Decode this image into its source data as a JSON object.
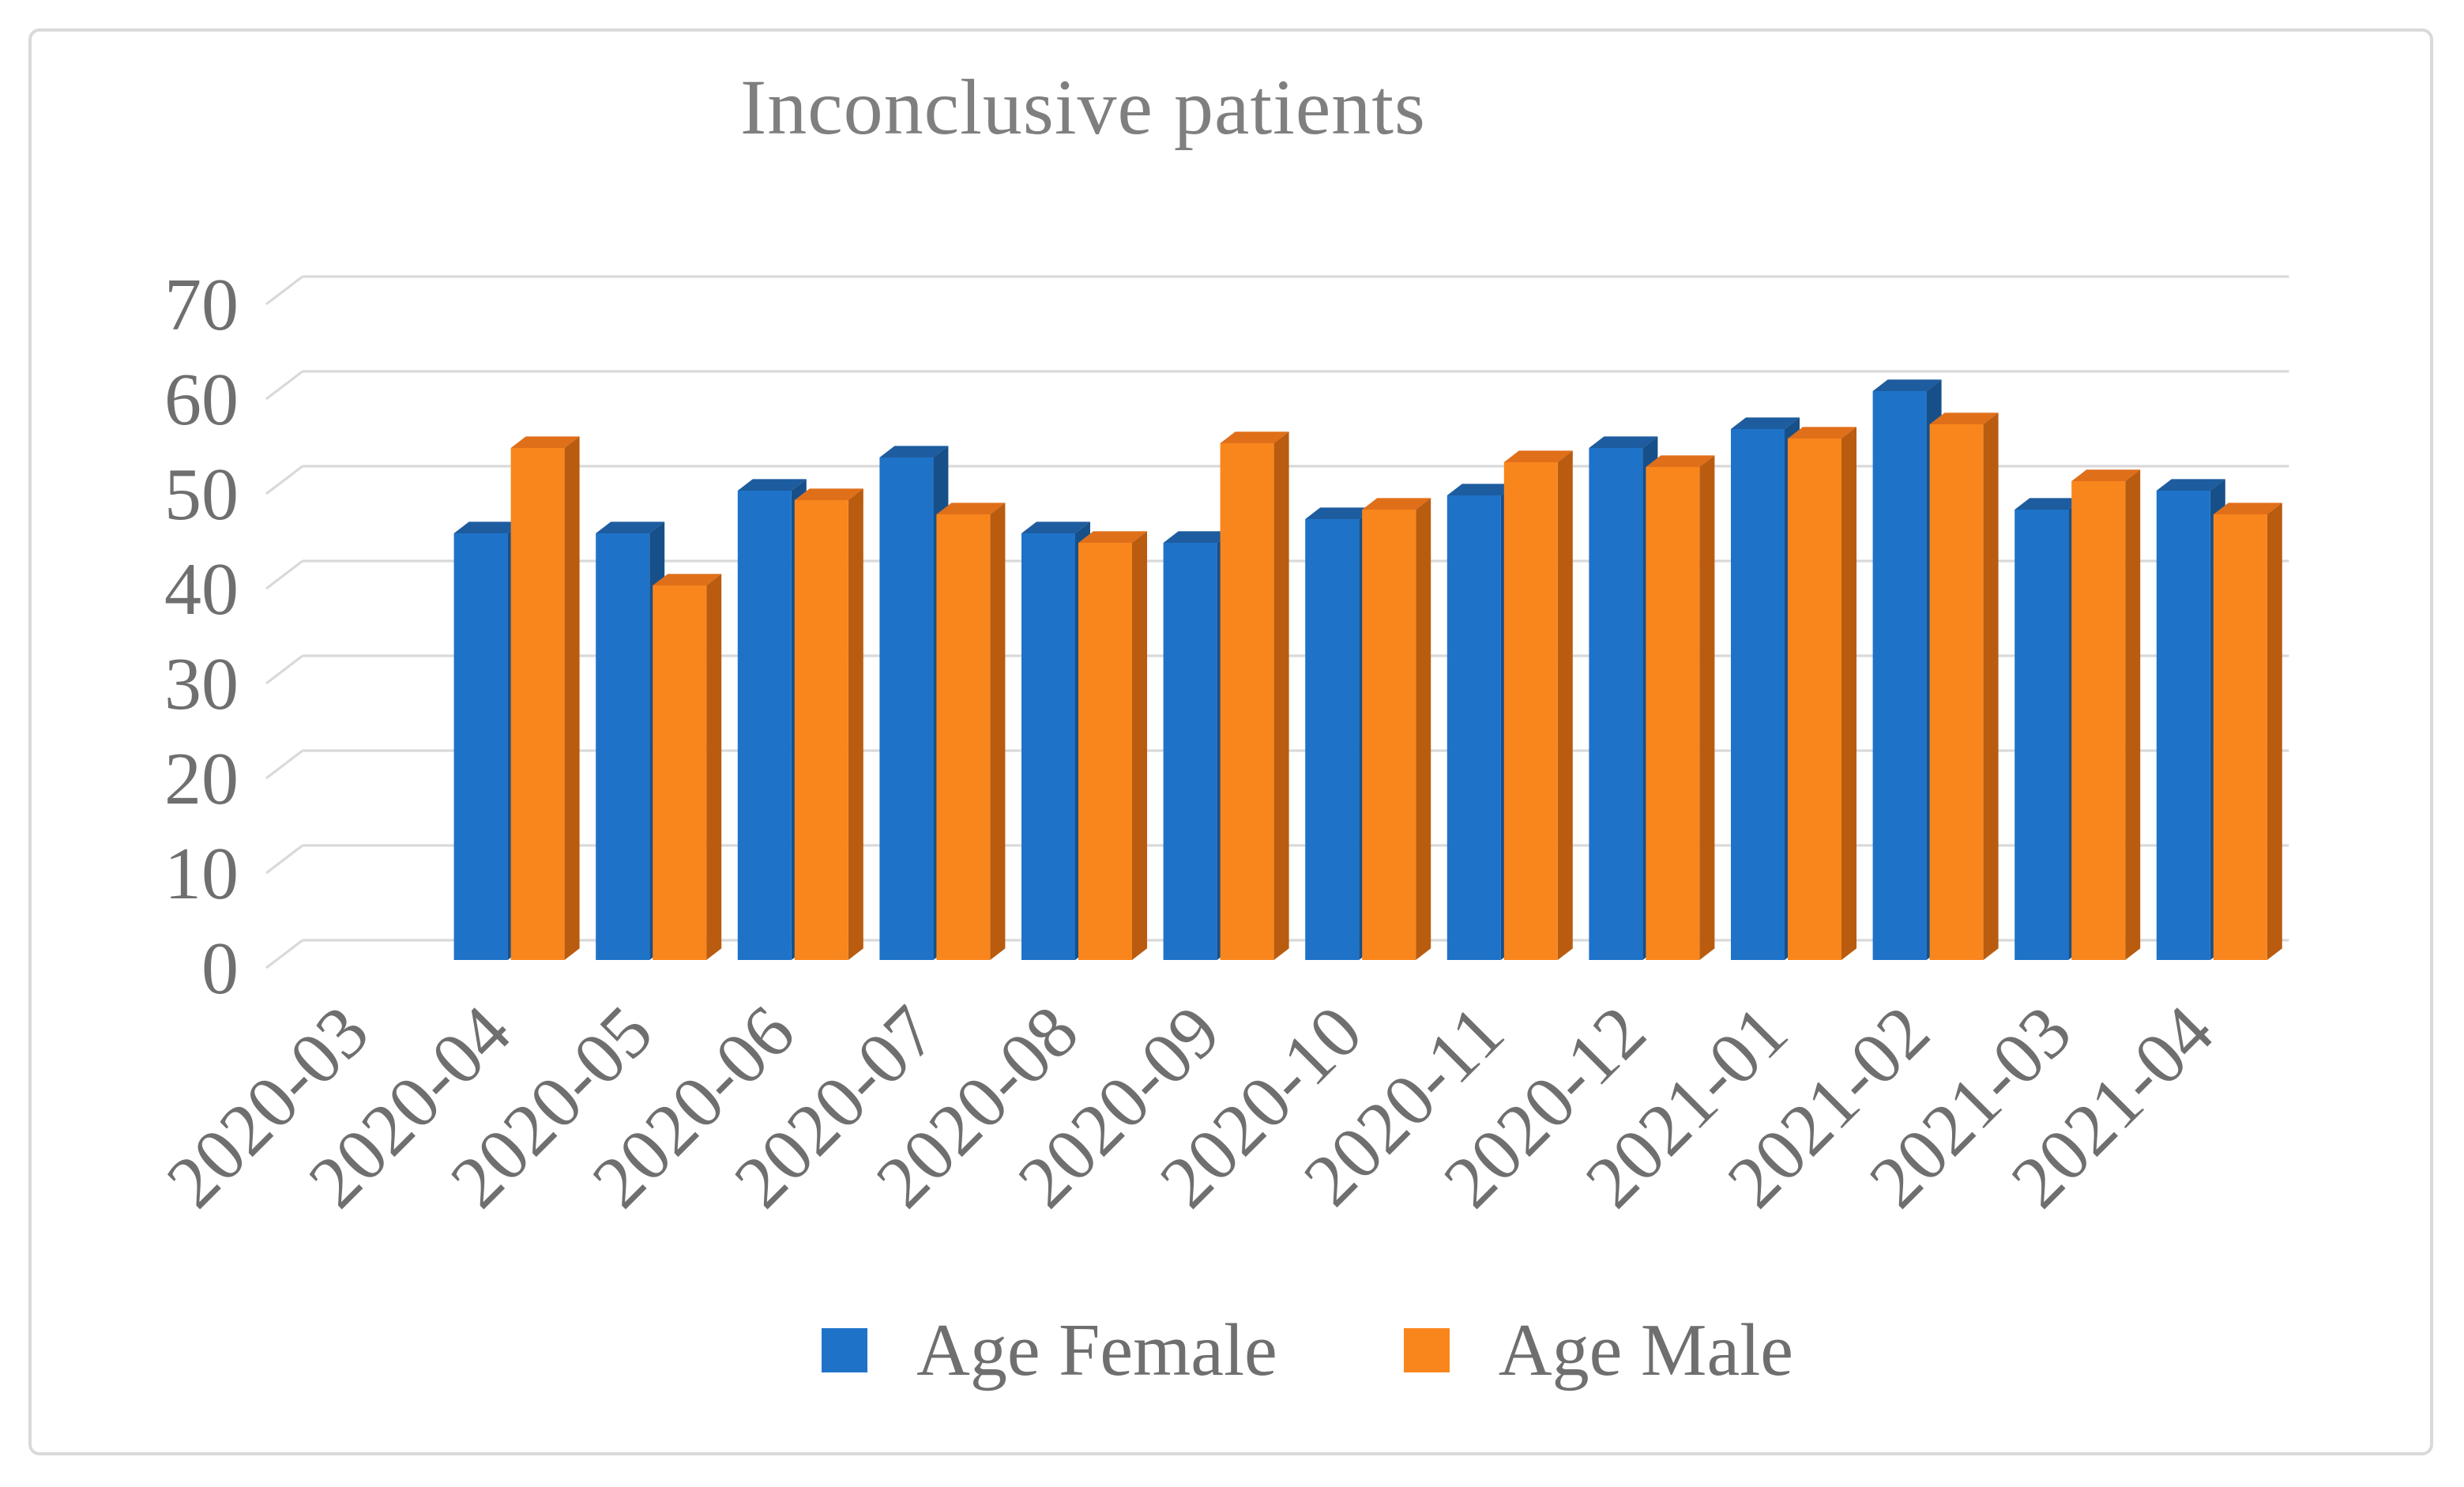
{
  "title": "Inconclusive patients",
  "legend": {
    "items": [
      {
        "label": "Age Female",
        "color": "#1e73c8"
      },
      {
        "label": "Age Male",
        "color": "#f9861d"
      }
    ]
  },
  "colors": {
    "female_front": "#1e73c8",
    "female_top": "#1d5c9e",
    "female_side": "#175089",
    "male_front": "#f9861d",
    "male_top": "#e06f1a",
    "male_side": "#b95c10",
    "gridline": "#d9d9d9",
    "axis_text": "#6f6f6f",
    "title_text": "#7f7f7f",
    "border": "#d9d9d9"
  },
  "chart_data": {
    "type": "bar",
    "subtype": "3d-clustered-column",
    "title": "Inconclusive patients",
    "categories": [
      "2020-03",
      "2020-04",
      "2020-05",
      "2020-06",
      "2020-07",
      "2020-08",
      "2020-09",
      "2020-10",
      "2020-11",
      "2020-12",
      "2021-01",
      "2021-02",
      "2021-03",
      "2021-04"
    ],
    "series": [
      {
        "name": "Age Female",
        "color": "#1e73c8",
        "values": [
          null,
          45,
          45,
          49.5,
          53,
          45,
          44,
          46.5,
          49,
          54,
          56,
          60,
          47.5,
          49.5
        ]
      },
      {
        "name": "Age Male",
        "color": "#f9861d",
        "values": [
          null,
          54,
          39.5,
          48.5,
          47,
          44,
          54.5,
          47.5,
          52.5,
          52,
          55,
          56.5,
          50.5,
          47
        ]
      }
    ],
    "xlabel": "",
    "ylabel": "",
    "ylim": [
      0,
      70
    ],
    "yticks": [
      0,
      10,
      20,
      30,
      40,
      50,
      60,
      70
    ],
    "grid": true,
    "grid_on": "back-wall",
    "legend_position": "bottom"
  }
}
